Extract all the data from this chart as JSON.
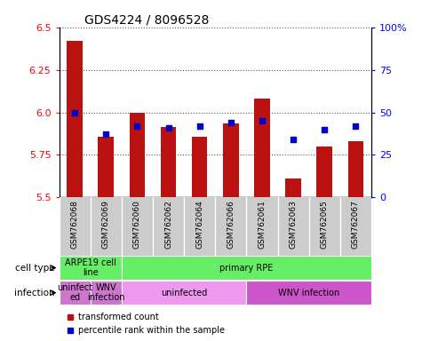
{
  "title": "GDS4224 / 8096528",
  "samples": [
    "GSM762068",
    "GSM762069",
    "GSM762060",
    "GSM762062",
    "GSM762064",
    "GSM762066",
    "GSM762061",
    "GSM762063",
    "GSM762065",
    "GSM762067"
  ],
  "transformed_count": [
    6.42,
    5.855,
    5.995,
    5.915,
    5.855,
    5.935,
    6.08,
    5.61,
    5.8,
    5.83
  ],
  "percentile_rank": [
    50,
    37,
    42,
    41,
    42,
    44,
    45,
    34,
    40,
    42
  ],
  "ymin": 5.5,
  "ymax": 6.5,
  "yticks": [
    5.5,
    5.75,
    6.0,
    6.25,
    6.5
  ],
  "y2min": 0,
  "y2max": 100,
  "y2ticks": [
    0,
    25,
    50,
    75,
    100
  ],
  "y2ticklabels": [
    "0",
    "25",
    "50",
    "75",
    "100%"
  ],
  "bar_color": "#bb1111",
  "dot_color": "#0000cc",
  "cell_type_groups": [
    {
      "text": "ARPE19 cell\nline",
      "start": 0,
      "end": 2,
      "color": "#66ee66"
    },
    {
      "text": "primary RPE",
      "start": 2,
      "end": 10,
      "color": "#66ee66"
    }
  ],
  "infection_groups": [
    {
      "text": "uninfect\ned",
      "start": 0,
      "end": 1,
      "color": "#cc77cc"
    },
    {
      "text": "WNV\ninfection",
      "start": 1,
      "end": 2,
      "color": "#cc77cc"
    },
    {
      "text": "uninfected",
      "start": 2,
      "end": 6,
      "color": "#ee99ee"
    },
    {
      "text": "WNV infection",
      "start": 6,
      "end": 10,
      "color": "#cc55cc"
    }
  ],
  "grid_color": "#555555",
  "sample_bg_color": "#cccccc",
  "cell_type_label": "cell type",
  "infection_label": "infection"
}
